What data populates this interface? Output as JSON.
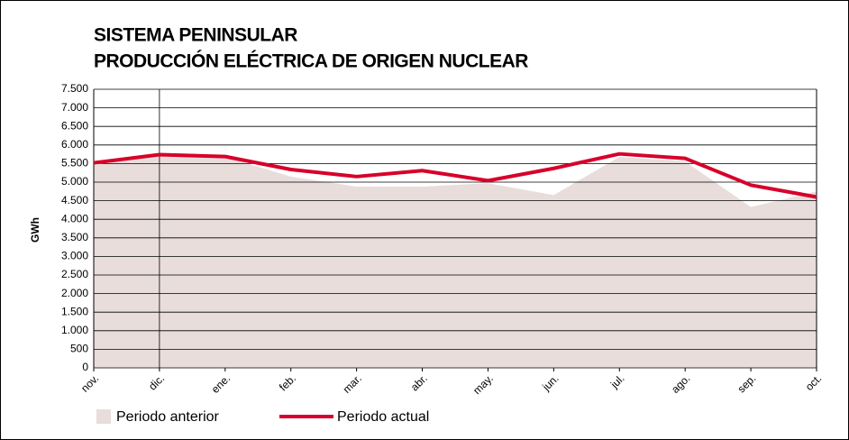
{
  "chart_data": {
    "type": "area-line",
    "title": [
      "SISTEMA PENINSULAR",
      "PRODUCCIÓN ELÉCTRICA DE ORIGEN NUCLEAR"
    ],
    "y_label": "GWh",
    "categories": [
      "nov.",
      "dic.",
      "ene.",
      "feb.",
      "mar.",
      "abr.",
      "may.",
      "jun.",
      "jul.",
      "ago.",
      "sep.",
      "oct."
    ],
    "series": [
      {
        "name": "Periodo anterior",
        "kind": "area",
        "color": "#e8dddb",
        "values": [
          5500,
          5740,
          5680,
          5150,
          4880,
          4880,
          4970,
          4650,
          5680,
          5560,
          4330,
          4750
        ]
      },
      {
        "name": "Periodo actual",
        "kind": "line",
        "color": "#d7002a",
        "values": [
          5520,
          5740,
          5690,
          5340,
          5150,
          5310,
          5040,
          5370,
          5760,
          5640,
          4920,
          4600
        ]
      }
    ],
    "ylim": [
      0,
      7500
    ],
    "yticks": [
      0,
      500,
      {
        "value": 1000,
        "label": "1.000"
      },
      {
        "value": 1500,
        "label": "1.500"
      },
      {
        "value": 2000,
        "label": "2.000"
      },
      {
        "value": 2500,
        "label": "2.500"
      },
      {
        "value": 3000,
        "label": "3.000"
      },
      {
        "value": 3500,
        "label": "3.500"
      },
      {
        "value": 4000,
        "label": "4.000"
      },
      {
        "value": 4500,
        "label": "4.500"
      },
      {
        "value": 5000,
        "label": "5.000"
      },
      {
        "value": 5500,
        "label": "5.500"
      },
      {
        "value": 6000,
        "label": "6.000"
      },
      {
        "value": 6500,
        "label": "6.500"
      },
      {
        "value": 7000,
        "label": "7.000"
      },
      {
        "value": 7500,
        "label": "7.500"
      }
    ],
    "grid": true
  }
}
